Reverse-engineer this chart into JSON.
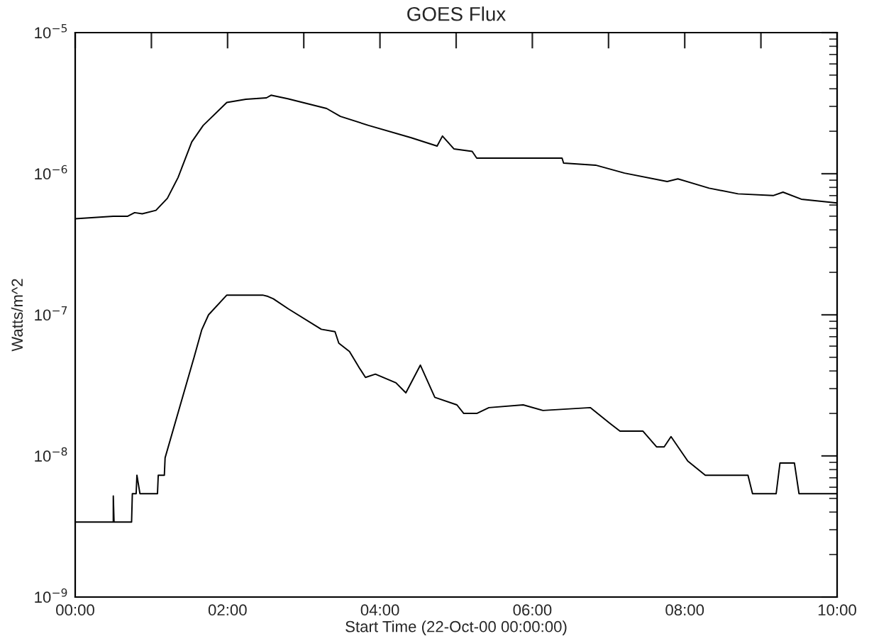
{
  "chart_data": {
    "type": "line",
    "title": "GOES Flux",
    "xlabel": "Start Time (22-Oct-00 00:00:00)",
    "ylabel": "Watts/m^2",
    "log": "y",
    "grid": false,
    "marker": "none",
    "line_style": "solid",
    "xlim": [
      0,
      10
    ],
    "xticks": [
      {
        "value": 0,
        "label": "00:00"
      },
      {
        "value": 1,
        "label": null
      },
      {
        "value": 2,
        "label": "02:00"
      },
      {
        "value": 3,
        "label": null
      },
      {
        "value": 4,
        "label": "04:00"
      },
      {
        "value": 5,
        "label": null
      },
      {
        "value": 6,
        "label": "06:00"
      },
      {
        "value": 7,
        "label": null
      },
      {
        "value": 8,
        "label": "08:00"
      },
      {
        "value": 9,
        "label": null
      },
      {
        "value": 10,
        "label": "10:00"
      }
    ],
    "ylim": [
      1e-09,
      1e-05
    ],
    "yticks": [
      {
        "value": 1e-09,
        "label": "10$^{−9}$"
      },
      {
        "value": 1e-08,
        "label": "10$^{−8}$"
      },
      {
        "value": 1e-07,
        "label": "10$^{−7}$"
      },
      {
        "value": 1e-06,
        "label": "10$^{−6}$"
      },
      {
        "value": 1e-05,
        "label": "10$^{−5}$"
      }
    ],
    "series": [
      {
        "color": "#000000",
        "x": [
          0,
          0.5,
          0.69,
          0.78,
          0.88,
          1.06,
          1.21,
          1.35,
          1.53,
          1.68,
          1.99,
          2.24,
          2.51,
          2.57,
          2.79,
          3.3,
          3.48,
          3.85,
          4.41,
          4.75,
          4.82,
          4.97,
          5.21,
          5.27,
          6.39,
          6.41,
          6.83,
          7.21,
          7.77,
          7.91,
          8.32,
          8.7,
          9.16,
          9.29,
          9.53,
          10
        ],
        "values": [
          4.8e-07,
          5e-07,
          5e-07,
          5.3e-07,
          5.2e-07,
          5.5e-07,
          6.7e-07,
          9.4e-07,
          1.68e-06,
          2.2e-06,
          3.2e-06,
          3.37e-06,
          3.45e-06,
          3.6e-06,
          3.4e-06,
          2.9e-06,
          2.55e-06,
          2.2e-06,
          1.8e-06,
          1.57e-06,
          1.85e-06,
          1.5e-06,
          1.44e-06,
          1.29e-06,
          1.29e-06,
          1.19e-06,
          1.15e-06,
          1.01e-06,
          8.8e-07,
          9.2e-07,
          7.9e-07,
          7.2e-07,
          7e-07,
          7.4e-07,
          6.6e-07,
          6.2e-07
        ]
      },
      {
        "color": "#000000",
        "x": [
          0,
          0.5,
          0.5,
          0.51,
          0.74,
          0.75,
          0.8,
          0.81,
          0.85,
          1.08,
          1.09,
          1.17,
          1.18,
          1.56,
          1.66,
          1.75,
          1.99,
          2.46,
          2.53,
          2.6,
          2.8,
          3.23,
          3.41,
          3.46,
          3.6,
          3.73,
          3.81,
          3.94,
          4.21,
          4.34,
          4.53,
          4.72,
          5.01,
          5.1,
          5.27,
          5.43,
          5.88,
          6.14,
          6.76,
          7.02,
          7.15,
          7.45,
          7.63,
          7.73,
          7.82,
          8.04,
          8.27,
          8.83,
          8.89,
          9.2,
          9.25,
          9.44,
          9.5,
          10
        ],
        "values": [
          3.4e-09,
          3.4e-09,
          5.2e-09,
          3.4e-09,
          3.4e-09,
          5.4e-09,
          5.4e-09,
          7.3e-09,
          5.4e-09,
          5.4e-09,
          7.3e-09,
          7.3e-09,
          9.7e-09,
          5e-08,
          7.8e-08,
          1e-07,
          1.38e-07,
          1.38e-07,
          1.35e-07,
          1.3e-07,
          1.1e-07,
          7.9e-08,
          7.6e-08,
          6.3e-08,
          5.5e-08,
          4.2e-08,
          3.6e-08,
          3.8e-08,
          3.3e-08,
          2.8e-08,
          4.4e-08,
          2.6e-08,
          2.3e-08,
          2e-08,
          2e-08,
          2.2e-08,
          2.3e-08,
          2.1e-08,
          2.2e-08,
          1.7e-08,
          1.5e-08,
          1.5e-08,
          1.16e-08,
          1.16e-08,
          1.37e-08,
          9.2e-09,
          7.3e-09,
          7.3e-09,
          5.4e-09,
          5.4e-09,
          8.9e-09,
          8.9e-09,
          5.4e-09,
          5.4e-09
        ]
      }
    ]
  }
}
